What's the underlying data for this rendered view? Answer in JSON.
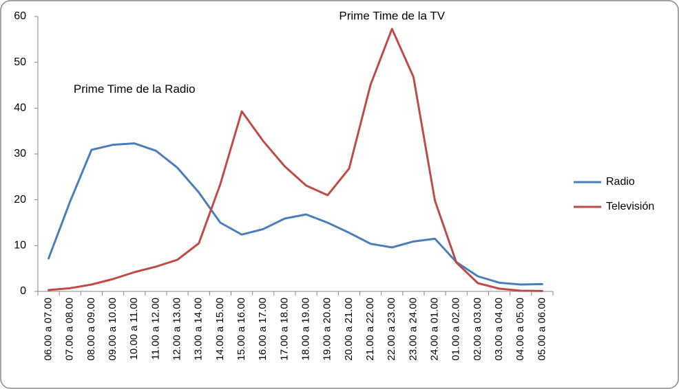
{
  "chart_data": {
    "type": "line",
    "categories": [
      "06.00 a 07.00",
      "07.00 a 08.00",
      "08.00 a 09.00",
      "09.00 a 10.00",
      "10.00 a 11.00",
      "11.00 a 12.00",
      "12.00 a 13.00",
      "13.00 a 14.00",
      "14.00 a 15.00",
      "15.00 a 16.00",
      "16.00 a 17.00",
      "17.00 a 18.00",
      "18.00 a 19.00",
      "19.00 a 20.00",
      "20.00 a 21.00",
      "21.00 a 22.00",
      "22.00 a 23.00",
      "23.00 a 24.00",
      "24.00 a 01.00",
      "01.00 a 02.00",
      "02.00 a 03.00",
      "03.00 a 04.00",
      "04.00 a 05.00",
      "05.00 a 06.00"
    ],
    "series": [
      {
        "name": "Radio",
        "color": "#4a7ebb",
        "values": [
          7.2,
          19.6,
          30.9,
          32,
          32.3,
          30.7,
          27,
          21.6,
          15,
          12.4,
          13.6,
          15.9,
          16.8,
          15,
          12.8,
          10.4,
          9.6,
          10.9,
          11.5,
          6.4,
          3.3,
          1.9,
          1.5,
          1.6
        ]
      },
      {
        "name": "Televisión",
        "color": "#be4b48",
        "values": [
          0.3,
          0.7,
          1.5,
          2.7,
          4.2,
          5.4,
          6.9,
          10.5,
          23.4,
          39.3,
          32.8,
          27.3,
          23.1,
          21,
          26.8,
          45.1,
          57.3,
          46.8,
          19.8,
          6.3,
          1.8,
          0.6,
          0.15,
          0.1
        ]
      }
    ],
    "annotations": [
      {
        "text": "Prime Time de la TV",
        "category": 16,
        "y": 60
      },
      {
        "text": "Prime Time de la Radio",
        "category": 4,
        "y": 44
      }
    ],
    "ylim": [
      0,
      60
    ],
    "yticks": [
      0,
      10,
      20,
      30,
      40,
      50,
      60
    ],
    "grid": false,
    "legend": "right"
  }
}
